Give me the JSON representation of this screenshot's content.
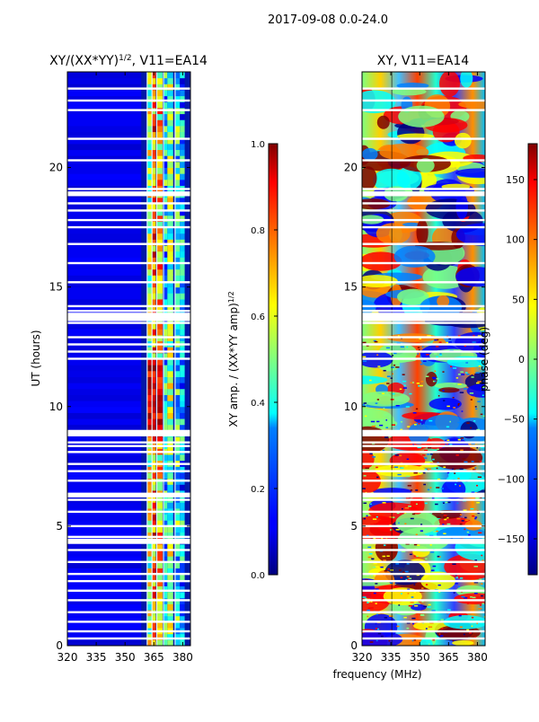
{
  "suptitle": "2017-09-08 0.0-24.0",
  "chart_data": [
    {
      "type": "heatmap",
      "title": "XY/(XX*YY)$^{1/2}$, V11=EA14",
      "title_base": "XY/(XX*YY)",
      "title_sup": "1/2",
      "title_rest": ", V11=EA14",
      "xlabel": "",
      "ylabel": "UT (hours)",
      "xlim": [
        320,
        384
      ],
      "ylim": [
        0,
        24
      ],
      "xticks": [
        320,
        335,
        350,
        365,
        380
      ],
      "yticks": [
        0,
        5,
        10,
        15,
        20
      ],
      "colorbar": {
        "label": "XY amp. / (XX*YY amp)$^{1/2}$",
        "label_base": "XY amp. / (XX*YY amp)",
        "label_sup": "1/2",
        "range": [
          0.0,
          1.0
        ],
        "ticks": [
          "0.0",
          "0.2",
          "0.4",
          "0.6",
          "0.8",
          "1.0"
        ],
        "colormap": "jet"
      },
      "features": {
        "bright_bands_mhz": [
          362,
          366,
          370,
          377
        ],
        "background_level": 0.1
      }
    },
    {
      "type": "heatmap",
      "title": "XY, V11=EA14",
      "xlabel": "frequency (MHz)",
      "ylabel": "",
      "xlim": [
        320,
        384
      ],
      "ylim": [
        0,
        24
      ],
      "xticks": [
        320,
        335,
        350,
        365,
        380
      ],
      "yticks": [
        0,
        5,
        10,
        15,
        20
      ],
      "colorbar": {
        "label": "phase (deg)",
        "range": [
          -180,
          180
        ],
        "ticks": [
          "−150",
          "−100",
          "−50",
          "0",
          "50",
          "100",
          "150"
        ],
        "colormap": "jet"
      }
    }
  ],
  "flagged_hours": [
    0.3,
    0.6,
    1.0,
    1.4,
    1.9,
    2.3,
    2.7,
    3.0,
    3.5,
    4.0,
    4.3,
    4.55,
    5.0,
    5.6,
    6.1,
    6.3,
    6.9,
    7.3,
    7.6,
    8.1,
    8.35,
    8.5,
    8.8,
    8.9,
    12.0,
    12.3,
    12.6,
    12.9,
    13.5,
    13.8,
    14.0,
    14.2,
    15.2,
    16.0,
    16.8,
    17.5,
    17.8,
    18.2,
    18.5,
    18.9,
    19.1,
    20.3,
    21.2,
    22.4,
    22.8,
    23.3
  ]
}
